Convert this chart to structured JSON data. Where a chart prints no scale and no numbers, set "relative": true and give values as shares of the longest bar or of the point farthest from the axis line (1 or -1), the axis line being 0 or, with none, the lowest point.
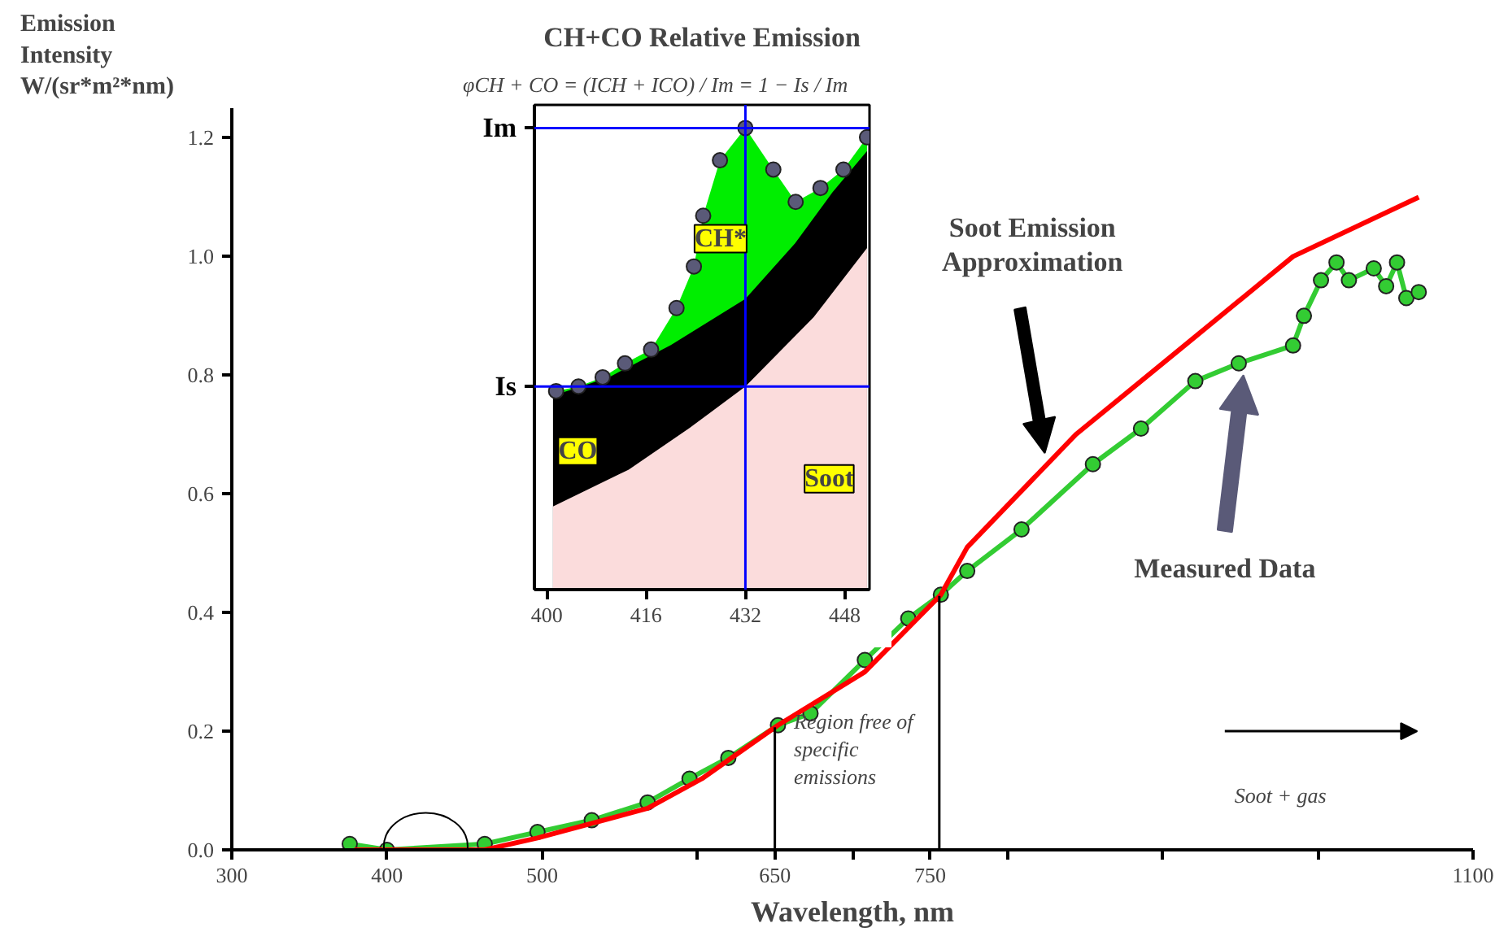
{
  "chart_data": [
    {
      "type": "line",
      "xlabel": "Wavelength, nm",
      "ylabel": "Emission Intensity W/(sr*m²*nm)",
      "xlim": [
        300,
        1100
      ],
      "ylim": [
        0,
        1.25
      ],
      "xticks": [
        300,
        400,
        500,
        {
          "value": 600,
          "label": null
        },
        650,
        {
          "value": 700,
          "label": null
        },
        750,
        {
          "value": 800,
          "label": null
        },
        {
          "value": 900,
          "label": null
        },
        {
          "value": 1000,
          "label": null
        },
        1100
      ],
      "yticks": [
        {
          "value": 0,
          "label": "0.0"
        },
        {
          "value": 0.2,
          "label": "0.2"
        },
        {
          "value": 0.4,
          "label": "0.4"
        },
        {
          "value": 0.6,
          "label": "0.6"
        },
        {
          "value": 0.8,
          "label": "0.8"
        },
        {
          "value": 1.0,
          "label": "1.0"
        },
        {
          "value": 1.2,
          "label": "1.2"
        }
      ],
      "grid": false,
      "series": [
        {
          "color": "#33cc33",
          "marker": "circle",
          "x": [
            376,
            400,
            463,
            497,
            532,
            568,
            595,
            620,
            652,
            673,
            708,
            736,
            757,
            774,
            809,
            855,
            886,
            921,
            949,
            984,
            991,
            1002,
            1012,
            1020,
            1036,
            1044,
            1051,
            1057,
            1065
          ],
          "values": [
            0.01,
            0.0,
            0.01,
            0.03,
            0.05,
            0.08,
            0.12,
            0.155,
            0.21,
            0.23,
            0.32,
            0.39,
            0.43,
            0.47,
            0.54,
            0.65,
            0.71,
            0.79,
            0.82,
            0.85,
            0.9,
            0.96,
            0.99,
            0.96,
            0.98,
            0.95,
            0.99,
            0.93,
            0.94
          ]
        },
        {
          "color": "#ff0000",
          "marker": "none",
          "x": [
            379,
            463,
            497,
            568,
            603,
            652,
            708,
            757,
            774,
            844,
            914,
            984,
            1065
          ],
          "values": [
            0.0,
            0.0,
            0.02,
            0.07,
            0.12,
            0.21,
            0.3,
            0.43,
            0.51,
            0.7,
            0.85,
            1.0,
            1.1
          ]
        }
      ],
      "ref_lines": [
        {
          "axis": "x",
          "value": 650,
          "color": "#000000"
        },
        {
          "axis": "x",
          "value": 756,
          "color": "#000000"
        }
      ],
      "annotations": [
        "Soot Emission Approximation",
        "Measured Data",
        "Region free of specific emissions",
        "Soot + gas"
      ]
    },
    {
      "type": "area",
      "title": "CH+CO Relative Emission",
      "subtitle": "φCH + CO = (ICH + ICO) / Im = 1 − Is / Im",
      "relative": true,
      "xlim": [
        398,
        452
      ],
      "xticks": [
        400,
        416,
        432,
        448
      ],
      "grid": false,
      "series": [
        {
          "color": "#00ee00",
          "x": [
            401.5,
            405.1,
            409.0,
            412.6,
            416.8,
            420.9,
            423.7,
            425.2,
            427.9,
            432,
            436.5,
            440.1,
            444.1,
            447.8,
            451.6
          ],
          "values": [
            0.43,
            0.44,
            0.46,
            0.49,
            0.52,
            0.61,
            0.7,
            0.81,
            0.93,
            1.0,
            0.91,
            0.84,
            0.87,
            0.91,
            0.98
          ]
        },
        {
          "color": "#000000",
          "x": [
            401,
            410,
            420,
            432,
            440,
            446,
            451.6
          ],
          "values": [
            0.42,
            0.46,
            0.53,
            0.63,
            0.75,
            0.86,
            0.95
          ]
        },
        {
          "color": "#fbdcdc",
          "x": [
            401,
            413.2,
            423,
            432,
            443,
            451.6
          ],
          "values": [
            0.18,
            0.26,
            0.35,
            0.44,
            0.59,
            0.74
          ]
        },
        {
          "type": "scatter",
          "color": "#5a5a78",
          "marker": "circle",
          "x": [
            401.5,
            405.1,
            409.0,
            412.6,
            416.8,
            420.9,
            423.7,
            425.2,
            427.9,
            432,
            436.5,
            440.1,
            444.1,
            447.8,
            451.6
          ],
          "values": [
            0.43,
            0.44,
            0.46,
            0.49,
            0.52,
            0.61,
            0.7,
            0.81,
            0.93,
            1.0,
            0.91,
            0.84,
            0.87,
            0.91,
            0.98
          ]
        }
      ],
      "ref_lines": [
        {
          "axis": "y",
          "value": 1.0,
          "label": "Im",
          "color": "#0000ff"
        },
        {
          "axis": "y",
          "value": 0.44,
          "label": "Is",
          "color": "#0000ff"
        },
        {
          "axis": "x",
          "value": 432,
          "color": "#0000ff"
        }
      ],
      "annotations": [
        {
          "text": "CH*",
          "x": 428,
          "y": 0.76
        },
        {
          "text": "CO",
          "x": 405,
          "y": 0.3
        },
        {
          "text": "Soot",
          "x": 445.5,
          "y": 0.24
        }
      ]
    }
  ]
}
